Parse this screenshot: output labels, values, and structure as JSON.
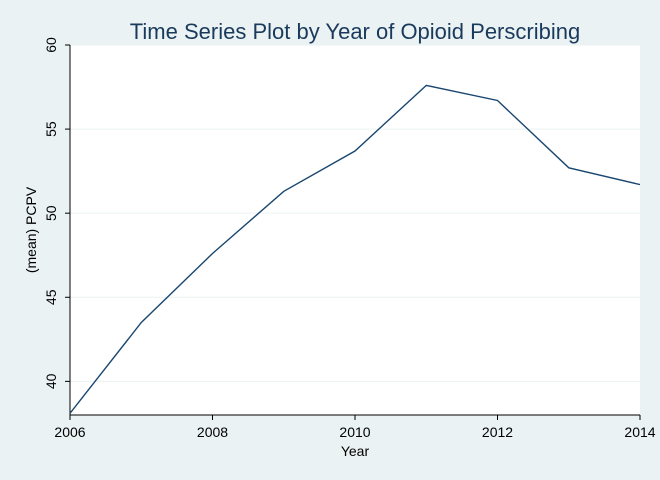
{
  "chart_data": {
    "type": "line",
    "title": "Time Series Plot by Year of Opioid Perscribing",
    "xlabel": "Year",
    "ylabel": "(mean) PCPV",
    "xlim": [
      2006,
      2014
    ],
    "ylim": [
      38,
      60
    ],
    "x_ticks": [
      2006,
      2008,
      2010,
      2012,
      2014
    ],
    "y_ticks": [
      40,
      45,
      50,
      55,
      60
    ],
    "grid": true,
    "legend": "none",
    "series": [
      {
        "x": [
          2006,
          2007,
          2008,
          2009,
          2010,
          2011,
          2012,
          2013,
          2014
        ],
        "values": [
          38.1,
          43.5,
          47.6,
          51.3,
          53.7,
          57.6,
          56.7,
          52.7,
          51.7
        ]
      }
    ],
    "colors": {
      "line": "#1a476f",
      "title": "#1a3a5c",
      "background": "#eaf2f3",
      "plot_background": "#ffffff",
      "grid": "#eaf2f3",
      "axis": "#000000"
    }
  }
}
